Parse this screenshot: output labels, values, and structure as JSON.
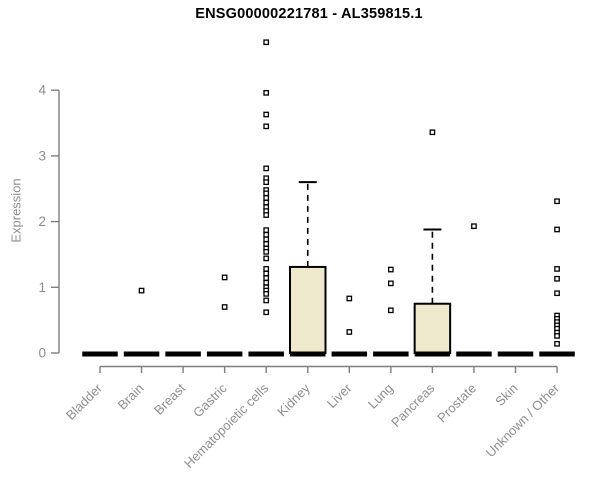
{
  "chart_data": {
    "type": "boxplot",
    "title": "ENSG00000221781 - AL359815.1",
    "ylabel": "Expression",
    "xlabel": "",
    "ylim": [
      0,
      4.8
    ],
    "yticks": [
      0,
      1,
      2,
      3,
      4
    ],
    "grid": false,
    "legend": false,
    "marker": "open-square",
    "categories": [
      "Bladder",
      "Brain",
      "Breast",
      "Gastric",
      "Hematopoietic cells",
      "Kidney",
      "Liver",
      "Lung",
      "Pancreas",
      "Prostate",
      "Skin",
      "Unknown / Other"
    ],
    "series": [
      {
        "category": "Bladder",
        "q1": 0,
        "median": 0,
        "q3": 0,
        "whisker_low": 0,
        "whisker_high": 0,
        "outliers": []
      },
      {
        "category": "Brain",
        "q1": 0,
        "median": 0,
        "q3": 0,
        "whisker_low": 0,
        "whisker_high": 0,
        "outliers": [
          0.95
        ]
      },
      {
        "category": "Breast",
        "q1": 0,
        "median": 0,
        "q3": 0,
        "whisker_low": 0,
        "whisker_high": 0,
        "outliers": []
      },
      {
        "category": "Gastric",
        "q1": 0,
        "median": 0,
        "q3": 0,
        "whisker_low": 0,
        "whisker_high": 0,
        "outliers": [
          1.15,
          0.7
        ]
      },
      {
        "category": "Hematopoietic cells",
        "q1": 0,
        "median": 0,
        "q3": 0,
        "whisker_low": 0,
        "whisker_high": 0,
        "outliers": [
          4.73,
          3.96,
          3.63,
          3.45,
          2.81,
          2.66,
          2.6,
          2.48,
          2.43,
          2.36,
          2.29,
          2.22,
          2.16,
          2.1,
          1.87,
          1.8,
          1.73,
          1.66,
          1.59,
          1.54,
          1.44,
          1.28,
          1.21,
          1.14,
          1.07,
          1.0,
          0.95,
          0.9,
          0.8,
          0.62
        ]
      },
      {
        "category": "Kidney",
        "q1": 0,
        "median": 0,
        "q3": 1.31,
        "whisker_low": 0,
        "whisker_high": 2.6,
        "outliers": []
      },
      {
        "category": "Liver",
        "q1": 0,
        "median": 0,
        "q3": 0,
        "whisker_low": 0,
        "whisker_high": 0,
        "outliers": [
          0.83,
          0.32
        ]
      },
      {
        "category": "Lung",
        "q1": 0,
        "median": 0,
        "q3": 0,
        "whisker_low": 0,
        "whisker_high": 0,
        "outliers": [
          1.27,
          1.06,
          0.65
        ]
      },
      {
        "category": "Pancreas",
        "q1": 0,
        "median": 0,
        "q3": 0.75,
        "whisker_low": 0,
        "whisker_high": 1.88,
        "outliers": [
          3.36
        ]
      },
      {
        "category": "Prostate",
        "q1": 0,
        "median": 0,
        "q3": 0,
        "whisker_low": 0,
        "whisker_high": 0,
        "outliers": [
          1.93
        ]
      },
      {
        "category": "Skin",
        "q1": 0,
        "median": 0,
        "q3": 0,
        "whisker_low": 0,
        "whisker_high": 0,
        "outliers": []
      },
      {
        "category": "Unknown / Other",
        "q1": 0,
        "median": 0,
        "q3": 0,
        "whisker_low": 0,
        "whisker_high": 0,
        "outliers": [
          2.31,
          1.88,
          1.28,
          1.13,
          0.91,
          0.57,
          0.52,
          0.47,
          0.42,
          0.37,
          0.31,
          0.26,
          0.14
        ]
      }
    ],
    "colors": {
      "box_fill": "#EEE8CD",
      "box_stroke": "#000000",
      "median": "#000000",
      "whisker": "#000000",
      "outlier_stroke": "#000000",
      "outlier_fill": "#ffffff",
      "axis": "#7f7f7f",
      "tick_text": "#8e8e8e",
      "title_text": "#000000"
    }
  }
}
